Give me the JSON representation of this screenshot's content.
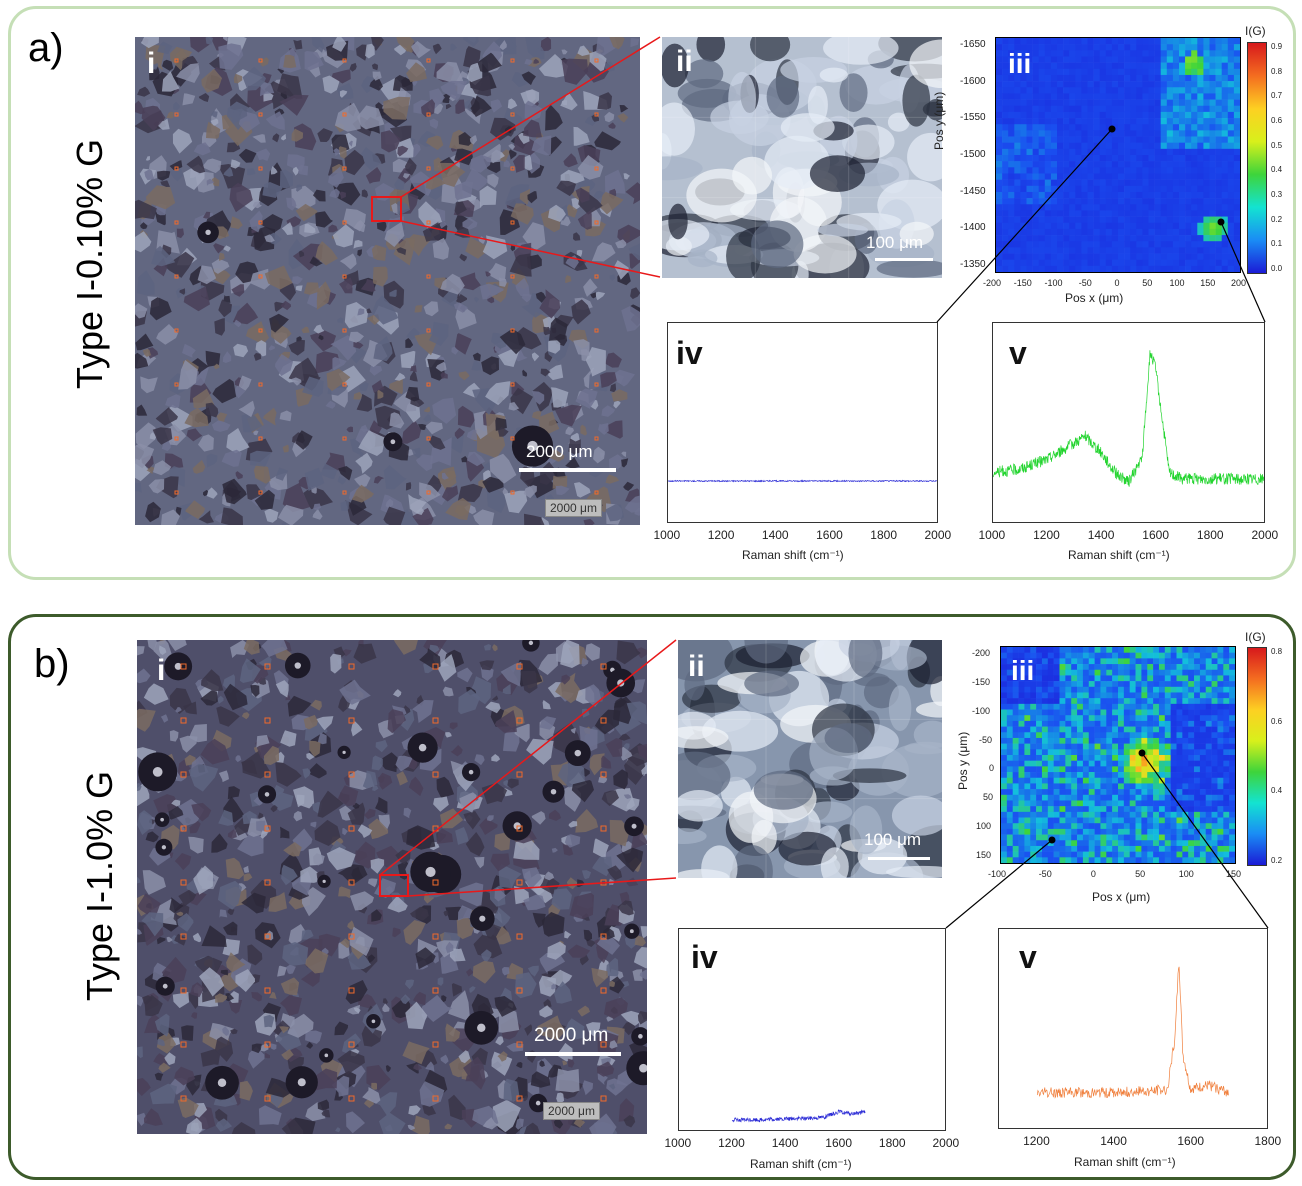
{
  "panels": {
    "a": {
      "letter": "a)",
      "sample": "Type I-0.10% G",
      "i": {
        "label": "i",
        "scale": "2000 μm",
        "tag": "2000 μm"
      },
      "ii": {
        "label": "ii",
        "scale": "100 μm"
      },
      "iii": {
        "label": "iii",
        "colorbar_title": "I(G)",
        "colorbar_ticks": [
          "0.9",
          "0.8",
          "0.7",
          "0.6",
          "0.5",
          "0.4",
          "0.3",
          "0.2",
          "0.1",
          "0.0"
        ],
        "y_ticks": [
          "-1650",
          "-1600",
          "-1550",
          "-1500",
          "-1450",
          "-1400",
          "-1350"
        ],
        "x_ticks": [
          "-200",
          "-150",
          "-100",
          "-50",
          "0",
          "50",
          "100",
          "150",
          "200"
        ],
        "xlabel": "Pos x (μm)",
        "ylabel": "Pos y (μm)"
      },
      "iv": {
        "label": "iv",
        "x_ticks": [
          "1000",
          "1200",
          "1400",
          "1600",
          "1800",
          "2000"
        ],
        "xlabel": "Raman shift (cm⁻¹)"
      },
      "v": {
        "label": "v",
        "x_ticks": [
          "1000",
          "1200",
          "1400",
          "1600",
          "1800",
          "2000"
        ],
        "xlabel": "Raman shift (cm⁻¹)"
      }
    },
    "b": {
      "letter": "b)",
      "sample": "Type I-1.0% G",
      "i": {
        "label": "i",
        "scale": "2000 μm",
        "tag": "2000 μm"
      },
      "ii": {
        "label": "ii",
        "scale": "100 μm"
      },
      "iii": {
        "label": "iii",
        "colorbar_title": "I(G)",
        "colorbar_ticks": [
          "0.8",
          "0.6",
          "0.4",
          "0.2"
        ],
        "y_ticks": [
          "-200",
          "-150",
          "-100",
          "-50",
          "0",
          "50",
          "100",
          "150"
        ],
        "x_ticks": [
          "-100",
          "-50",
          "0",
          "50",
          "100",
          "150"
        ],
        "xlabel": "Pos x (μm)",
        "ylabel": "Pos y (μm)"
      },
      "iv": {
        "label": "iv",
        "x_ticks": [
          "1000",
          "1200",
          "1400",
          "1600",
          "1800",
          "2000"
        ],
        "xlabel": "Raman shift (cm⁻¹)"
      },
      "v": {
        "label": "v",
        "x_ticks": [
          "1200",
          "1400",
          "1600",
          "1800"
        ],
        "xlabel": "Raman shift (cm⁻¹)"
      }
    }
  },
  "colors": {
    "panel_a_border": "#c5dfb6",
    "panel_b_border": "#3d5b2b",
    "zoom_line": "#e8191a",
    "spectrum_blue": "#2c2cd6",
    "spectrum_green": "#22d42e",
    "spectrum_orange": "#f07f3c"
  },
  "chart_data": [
    {
      "type": "line",
      "panel": "a-iv",
      "xlabel": "Raman shift (cm⁻¹)",
      "xlim": [
        1000,
        2000
      ],
      "series": [
        {
          "x": [
            1000,
            1200,
            1400,
            1600,
            1800,
            2000
          ],
          "values": [
            0.02,
            0.02,
            0.02,
            0.02,
            0.02,
            0.02
          ]
        }
      ]
    },
    {
      "type": "line",
      "panel": "a-v",
      "xlabel": "Raman shift (cm⁻¹)",
      "xlim": [
        1000,
        2000
      ],
      "series": [
        {
          "x": [
            1000,
            1100,
            1200,
            1300,
            1340,
            1400,
            1450,
            1500,
            1550,
            1580,
            1600,
            1650,
            1700,
            1800,
            1900,
            2000
          ],
          "values": [
            0.12,
            0.14,
            0.2,
            0.3,
            0.34,
            0.24,
            0.12,
            0.06,
            0.2,
            0.85,
            0.75,
            0.12,
            0.08,
            0.08,
            0.08,
            0.08
          ]
        }
      ]
    },
    {
      "type": "line",
      "panel": "b-iv",
      "xlabel": "Raman shift (cm⁻¹)",
      "xlim": [
        1000,
        2000
      ],
      "series": [
        {
          "x": [
            1200,
            1300,
            1400,
            1500,
            1550,
            1600,
            1650,
            1700
          ],
          "values": [
            0.02,
            0.02,
            0.025,
            0.03,
            0.035,
            0.06,
            0.05,
            0.06
          ]
        }
      ]
    },
    {
      "type": "line",
      "panel": "b-v",
      "xlabel": "Raman shift (cm⁻¹)",
      "xlim": [
        1100,
        1800
      ],
      "series": [
        {
          "x": [
            1200,
            1300,
            1400,
            1500,
            1540,
            1560,
            1570,
            1580,
            1600,
            1650,
            1700
          ],
          "values": [
            0.18,
            0.18,
            0.18,
            0.19,
            0.2,
            0.5,
            0.95,
            0.4,
            0.2,
            0.22,
            0.18
          ]
        }
      ]
    }
  ]
}
